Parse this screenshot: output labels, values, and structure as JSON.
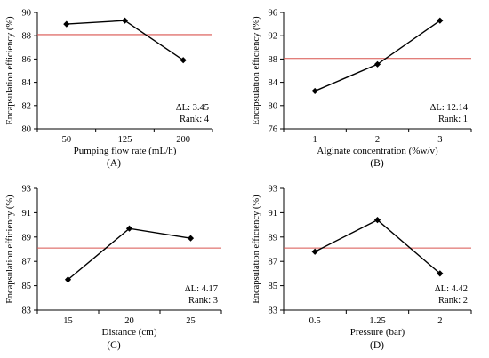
{
  "colors": {
    "reference_line": "#d9534f",
    "series": "#000000"
  },
  "chart_data": [
    {
      "id": "A",
      "type": "line",
      "categories": [
        "50",
        "125",
        "200"
      ],
      "values": [
        89.0,
        89.3,
        85.9
      ],
      "xlabel": "Pumping flow rate (mL/h)",
      "ylabel": "Encapsulation efficiency (%)",
      "ylim": [
        80,
        90
      ],
      "yticks": [
        "80",
        "82",
        "84",
        "86",
        "88",
        "90"
      ],
      "reference_line": 88.1,
      "annotation_delta": "ΔL: 3.45",
      "annotation_rank": "Rank: 4",
      "panel_label": "(A)"
    },
    {
      "id": "B",
      "type": "line",
      "categories": [
        "1",
        "2",
        "3"
      ],
      "values": [
        82.5,
        87.1,
        94.6
      ],
      "xlabel": "Alginate concentration (%w/v)",
      "ylabel": "Encapsulation efficiency (%)",
      "ylim": [
        76,
        96
      ],
      "yticks": [
        "76",
        "80",
        "84",
        "88",
        "92",
        "96"
      ],
      "reference_line": 88.1,
      "annotation_delta": "ΔL: 12.14",
      "annotation_rank": "Rank: 1",
      "panel_label": "(B)"
    },
    {
      "id": "C",
      "type": "line",
      "categories": [
        "15",
        "20",
        "25"
      ],
      "values": [
        85.5,
        89.7,
        88.9
      ],
      "xlabel": "Distance (cm)",
      "ylabel": "Encapsulation efficiency (%)",
      "ylim": [
        83,
        93
      ],
      "yticks": [
        "83",
        "85",
        "87",
        "89",
        "91",
        "93"
      ],
      "reference_line": 88.1,
      "annotation_delta": "ΔL: 4.17",
      "annotation_rank": "Rank: 3",
      "panel_label": "(C)"
    },
    {
      "id": "D",
      "type": "line",
      "categories": [
        "0.5",
        "1.25",
        "2"
      ],
      "values": [
        87.8,
        90.4,
        86.0
      ],
      "xlabel": "Pressure (bar)",
      "ylabel": "Encapsulation efficiency (%)",
      "ylim": [
        83,
        93
      ],
      "yticks": [
        "83",
        "85",
        "87",
        "89",
        "91",
        "93"
      ],
      "reference_line": 88.1,
      "annotation_delta": "ΔL: 4.42",
      "annotation_rank": "Rank: 2",
      "panel_label": "(D)"
    }
  ]
}
